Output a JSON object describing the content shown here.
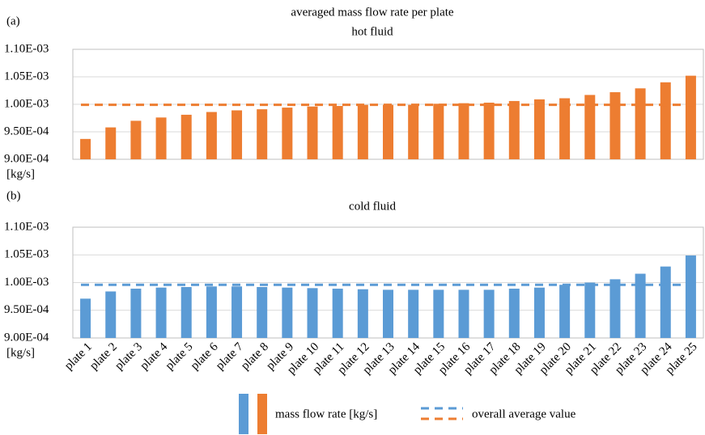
{
  "chart_data": [
    {
      "type": "bar",
      "label": "(a)",
      "title": "averaged mass flow rate per plate",
      "subtitle": "hot fluid",
      "y_unit": "[kg/s]",
      "series": [
        {
          "name": "mass flow rate [kg/s]",
          "color": "#ed7d31",
          "values": [
            0.000937,
            0.000958,
            0.00097,
            0.000976,
            0.000981,
            0.000986,
            0.000989,
            0.000991,
            0.000994,
            0.000996,
            0.000997,
            0.000999,
            0.000999,
            0.000999,
            0.001001,
            0.001002,
            0.001003,
            0.001006,
            0.001009,
            0.001011,
            0.001017,
            0.001022,
            0.001029,
            0.00104,
            0.001052
          ]
        }
      ],
      "average": {
        "name": "overall average value",
        "color": "#ed7d31",
        "value": 0.000999
      },
      "ylim": [
        0.0009,
        0.0011
      ],
      "yticks": [
        {
          "value": 0.0009,
          "label": "9.00E-04"
        },
        {
          "value": 0.00095,
          "label": "9.50E-04"
        },
        {
          "value": 0.001,
          "label": "1.00E-03"
        },
        {
          "value": 0.00105,
          "label": "1.05E-03"
        },
        {
          "value": 0.0011,
          "label": "1.10E-03"
        }
      ],
      "grid": true
    },
    {
      "type": "bar",
      "label": "(b)",
      "subtitle": "cold fluid",
      "y_unit": "[kg/s]",
      "categories": [
        "plate 1",
        "plate 2",
        "plate 3",
        "plate 4",
        "plate 5",
        "plate 6",
        "plate 7",
        "plate 8",
        "plate 9",
        "plate 10",
        "plate 11",
        "plate 12",
        "plate 13",
        "plate 14",
        "plate 15",
        "plate 16",
        "plate 17",
        "plate 18",
        "plate 19",
        "plate 20",
        "plate 21",
        "plate 22",
        "plate 23",
        "plate 24",
        "plate 25"
      ],
      "series": [
        {
          "color": "#5b9bd5",
          "values": [
            0.000971,
            0.000984,
            0.000989,
            0.000991,
            0.000992,
            0.000993,
            0.000993,
            0.000992,
            0.000991,
            0.00099,
            0.000989,
            0.000988,
            0.000987,
            0.000987,
            0.000987,
            0.000987,
            0.000987,
            0.000989,
            0.000991,
            0.000996,
            0.001,
            0.001006,
            0.001016,
            0.001029,
            0.001049
          ]
        }
      ],
      "average": {
        "color": "#5b9bd5",
        "value": 0.000996
      },
      "ylim": [
        0.0009,
        0.0011
      ],
      "yticks": [
        {
          "value": 0.0009,
          "label": "9.00E-04"
        },
        {
          "value": 0.00095,
          "label": "9.50E-04"
        },
        {
          "value": 0.001,
          "label": "1.00E-03"
        },
        {
          "value": 0.00105,
          "label": "1.05E-03"
        },
        {
          "value": 0.0011,
          "label": "1.10E-03"
        }
      ],
      "grid": true
    }
  ]
}
